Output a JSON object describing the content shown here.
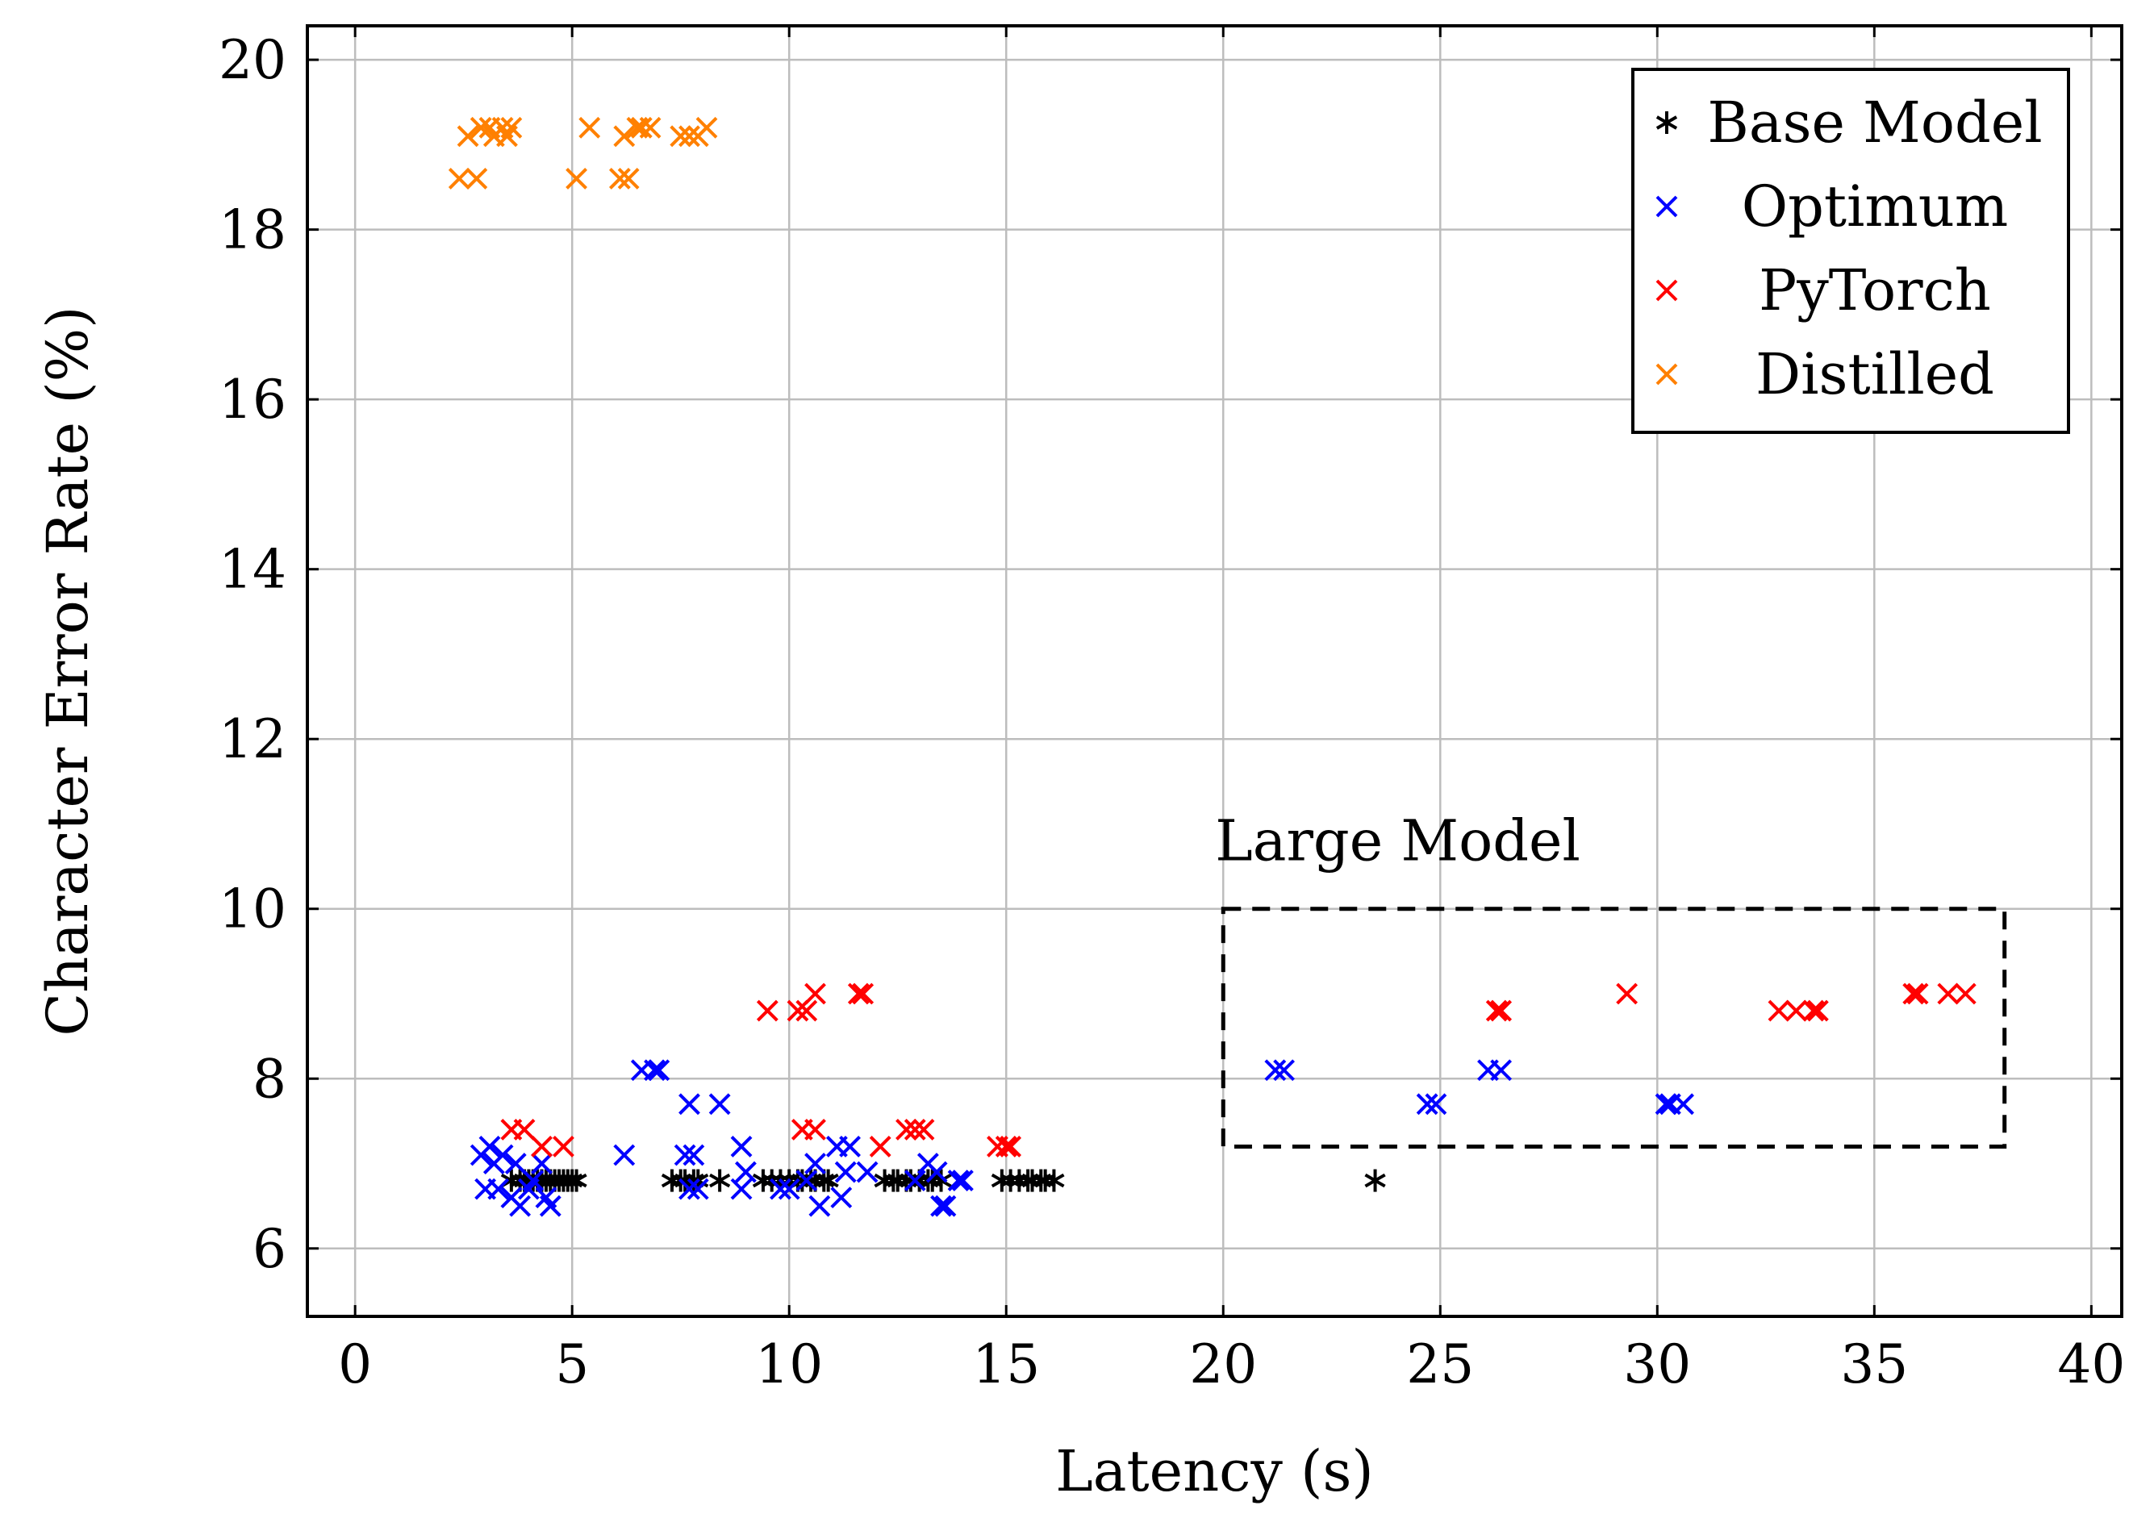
{
  "chart_data": {
    "type": "scatter",
    "xlabel": "Latency (s)",
    "ylabel": "Character Error Rate (%)",
    "xlim": [
      -1.1,
      40.7
    ],
    "ylim": [
      5.2,
      20.4
    ],
    "xticks": [
      0,
      5,
      10,
      15,
      20,
      25,
      30,
      35,
      40
    ],
    "yticks": [
      6,
      8,
      10,
      12,
      14,
      16,
      18,
      20
    ],
    "grid": true,
    "legend_position": "top-right",
    "series": [
      {
        "name": "Base Model",
        "color": "#000000",
        "marker": "asterisk",
        "points": [
          [
            3.6,
            6.8
          ],
          [
            3.8,
            6.8
          ],
          [
            3.9,
            6.8
          ],
          [
            4.0,
            6.8
          ],
          [
            4.1,
            6.8
          ],
          [
            4.2,
            6.8
          ],
          [
            4.3,
            6.8
          ],
          [
            4.4,
            6.8
          ],
          [
            4.5,
            6.8
          ],
          [
            4.6,
            6.8
          ],
          [
            4.7,
            6.8
          ],
          [
            4.8,
            6.8
          ],
          [
            4.9,
            6.8
          ],
          [
            5.0,
            6.8
          ],
          [
            5.1,
            6.8
          ],
          [
            7.3,
            6.8
          ],
          [
            7.5,
            6.8
          ],
          [
            7.6,
            6.8
          ],
          [
            7.8,
            6.8
          ],
          [
            7.9,
            6.8
          ],
          [
            8.4,
            6.8
          ],
          [
            9.4,
            6.8
          ],
          [
            9.6,
            6.8
          ],
          [
            9.8,
            6.8
          ],
          [
            10.0,
            6.8
          ],
          [
            10.2,
            6.8
          ],
          [
            10.3,
            6.8
          ],
          [
            10.5,
            6.8
          ],
          [
            10.6,
            6.8
          ],
          [
            10.8,
            6.8
          ],
          [
            10.9,
            6.8
          ],
          [
            12.2,
            6.8
          ],
          [
            12.4,
            6.8
          ],
          [
            12.5,
            6.8
          ],
          [
            12.7,
            6.8
          ],
          [
            12.8,
            6.8
          ],
          [
            13.0,
            6.8
          ],
          [
            13.2,
            6.8
          ],
          [
            13.3,
            6.8
          ],
          [
            13.5,
            6.8
          ],
          [
            14.9,
            6.8
          ],
          [
            15.1,
            6.8
          ],
          [
            15.3,
            6.8
          ],
          [
            15.5,
            6.8
          ],
          [
            15.6,
            6.8
          ],
          [
            15.8,
            6.8
          ],
          [
            15.9,
            6.8
          ],
          [
            16.1,
            6.8
          ],
          [
            23.5,
            6.8
          ]
        ]
      },
      {
        "name": "Optimum",
        "color": "#0000ff",
        "marker": "cross",
        "points": [
          [
            2.9,
            7.1
          ],
          [
            3.0,
            6.7
          ],
          [
            3.1,
            7.2
          ],
          [
            3.2,
            7.0
          ],
          [
            3.3,
            6.7
          ],
          [
            3.4,
            7.1
          ],
          [
            3.6,
            6.6
          ],
          [
            3.7,
            7.0
          ],
          [
            3.8,
            6.5
          ],
          [
            4.0,
            6.7
          ],
          [
            4.1,
            6.8
          ],
          [
            4.3,
            7.0
          ],
          [
            4.4,
            6.6
          ],
          [
            4.5,
            6.5
          ],
          [
            6.2,
            7.1
          ],
          [
            6.6,
            8.1
          ],
          [
            6.9,
            8.1
          ],
          [
            7.0,
            8.1
          ],
          [
            7.6,
            7.1
          ],
          [
            7.7,
            7.7
          ],
          [
            7.7,
            6.7
          ],
          [
            7.8,
            7.1
          ],
          [
            7.9,
            6.7
          ],
          [
            8.4,
            7.7
          ],
          [
            8.9,
            7.2
          ],
          [
            8.9,
            6.7
          ],
          [
            9.0,
            6.9
          ],
          [
            9.8,
            6.7
          ],
          [
            10.0,
            6.7
          ],
          [
            10.4,
            6.8
          ],
          [
            10.6,
            7.0
          ],
          [
            10.7,
            6.5
          ],
          [
            11.1,
            7.2
          ],
          [
            11.2,
            6.6
          ],
          [
            11.3,
            6.9
          ],
          [
            11.4,
            7.2
          ],
          [
            11.8,
            6.9
          ],
          [
            12.9,
            6.8
          ],
          [
            13.2,
            7.0
          ],
          [
            13.4,
            6.9
          ],
          [
            13.5,
            6.5
          ],
          [
            13.6,
            6.5
          ],
          [
            13.9,
            6.8
          ],
          [
            14.0,
            6.8
          ],
          [
            21.2,
            8.1
          ],
          [
            21.4,
            8.1
          ],
          [
            24.7,
            7.7
          ],
          [
            24.9,
            7.7
          ],
          [
            26.1,
            8.1
          ],
          [
            26.4,
            8.1
          ],
          [
            30.2,
            7.7
          ],
          [
            30.3,
            7.7
          ],
          [
            30.6,
            7.7
          ]
        ]
      },
      {
        "name": "PyTorch",
        "color": "#ff0000",
        "marker": "cross",
        "points": [
          [
            3.6,
            7.4
          ],
          [
            3.9,
            7.4
          ],
          [
            4.3,
            7.2
          ],
          [
            4.8,
            7.2
          ],
          [
            9.5,
            8.8
          ],
          [
            10.2,
            8.8
          ],
          [
            10.4,
            8.8
          ],
          [
            10.3,
            7.4
          ],
          [
            10.6,
            7.4
          ],
          [
            10.6,
            9.0
          ],
          [
            11.6,
            9.0
          ],
          [
            11.7,
            9.0
          ],
          [
            12.1,
            7.2
          ],
          [
            12.7,
            7.4
          ],
          [
            12.9,
            7.4
          ],
          [
            13.1,
            7.4
          ],
          [
            14.8,
            7.2
          ],
          [
            15.0,
            7.2
          ],
          [
            15.1,
            7.2
          ],
          [
            26.3,
            8.8
          ],
          [
            26.4,
            8.8
          ],
          [
            29.3,
            9.0
          ],
          [
            32.8,
            8.8
          ],
          [
            33.2,
            8.8
          ],
          [
            33.6,
            8.8
          ],
          [
            33.7,
            8.8
          ],
          [
            35.9,
            9.0
          ],
          [
            36.0,
            9.0
          ],
          [
            36.7,
            9.0
          ],
          [
            37.1,
            9.0
          ]
        ]
      },
      {
        "name": "Distilled",
        "color": "#ff8000",
        "marker": "cross",
        "points": [
          [
            2.4,
            18.6
          ],
          [
            2.8,
            18.6
          ],
          [
            2.6,
            19.1
          ],
          [
            2.9,
            19.2
          ],
          [
            3.1,
            19.2
          ],
          [
            3.2,
            19.1
          ],
          [
            3.4,
            19.2
          ],
          [
            3.5,
            19.1
          ],
          [
            3.6,
            19.2
          ],
          [
            5.1,
            18.6
          ],
          [
            5.4,
            19.2
          ],
          [
            6.1,
            18.6
          ],
          [
            6.3,
            18.6
          ],
          [
            6.2,
            19.1
          ],
          [
            6.5,
            19.2
          ],
          [
            6.6,
            19.2
          ],
          [
            6.8,
            19.2
          ],
          [
            7.5,
            19.1
          ],
          [
            7.7,
            19.1
          ],
          [
            7.9,
            19.1
          ],
          [
            8.1,
            19.2
          ]
        ]
      }
    ],
    "annotation": {
      "label": "Large Model",
      "box": {
        "x": [
          20,
          38
        ],
        "y": [
          7.2,
          10
        ]
      }
    }
  }
}
